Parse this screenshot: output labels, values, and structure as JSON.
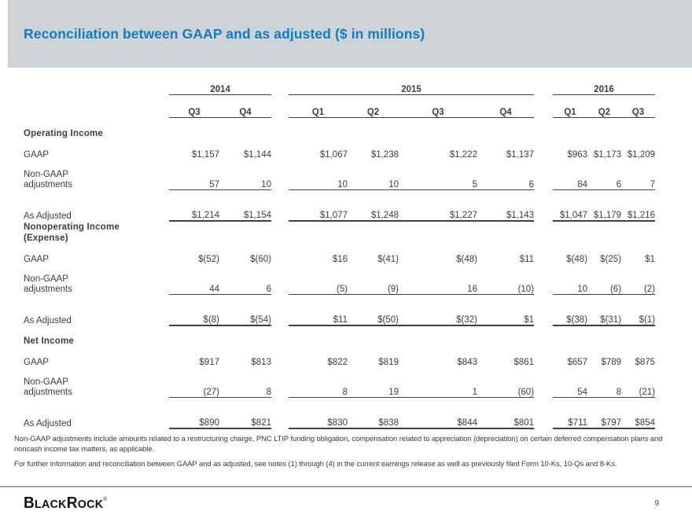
{
  "header": {
    "title": "Reconciliation between GAAP and as adjusted ($ in millions)"
  },
  "table": {
    "year_groups": [
      {
        "year": "2014",
        "quarters": [
          "Q3",
          "Q4"
        ]
      },
      {
        "year": "2015",
        "quarters": [
          "Q1",
          "Q2",
          "Q3",
          "Q4"
        ]
      },
      {
        "year": "2016",
        "quarters": [
          "Q1",
          "Q2",
          "Q3"
        ]
      }
    ],
    "sections": [
      {
        "name_lines": [
          "Operating Income"
        ],
        "rows": [
          {
            "label_lines": [
              "GAAP"
            ],
            "values": [
              "$1,157",
              "$1,144",
              "$1,067",
              "$1,238",
              "$1,222",
              "$1,137",
              "$963",
              "$1,173",
              "$1,209"
            ]
          },
          {
            "label_lines": [
              "Non-GAAP",
              "adjustments"
            ],
            "values": [
              "57",
              "10",
              "10",
              "10",
              "5",
              "6",
              "84",
              "6",
              "7"
            ]
          },
          {
            "label_lines": [
              "As Adjusted"
            ],
            "values": [
              "$1,214",
              "$1,154",
              "$1,077",
              "$1,248",
              "$1,227",
              "$1,143",
              "$1,047",
              "$1,179",
              "$1,216"
            ]
          }
        ]
      },
      {
        "name_lines": [
          "Nonoperating Income",
          "(Expense)"
        ],
        "rows": [
          {
            "label_lines": [
              "GAAP"
            ],
            "values": [
              "$(52)",
              "$(60)",
              "$16",
              "$(41)",
              "$(48)",
              "$11",
              "$(48)",
              "$(25)",
              "$1"
            ]
          },
          {
            "label_lines": [
              "Non-GAAP",
              "adjustments"
            ],
            "values": [
              "44",
              "6",
              "(5)",
              "(9)",
              "16",
              "(10)",
              "10",
              "(6)",
              "(2)"
            ]
          },
          {
            "label_lines": [
              "As Adjusted"
            ],
            "values": [
              "$(8)",
              "$(54)",
              "$11",
              "$(50)",
              "$(32)",
              "$1",
              "$(38)",
              "$(31)",
              "$(1)"
            ]
          }
        ]
      },
      {
        "name_lines": [
          "Net Income"
        ],
        "rows": [
          {
            "label_lines": [
              "GAAP"
            ],
            "values": [
              "$917",
              "$813",
              "$822",
              "$819",
              "$843",
              "$861",
              "$657",
              "$789",
              "$875"
            ]
          },
          {
            "label_lines": [
              "Non-GAAP",
              "adjustments"
            ],
            "values": [
              "(27)",
              "8",
              "8",
              "19",
              "1",
              "(60)",
              "54",
              "8",
              "(21)"
            ]
          },
          {
            "label_lines": [
              "As Adjusted"
            ],
            "values": [
              "$890",
              "$821",
              "$830",
              "$838",
              "$844",
              "$801",
              "$711",
              "$797",
              "$854"
            ]
          }
        ]
      }
    ]
  },
  "footnotes": [
    "Non-GAAP adjustments include amounts related to a restructuring charge, PNC LTIP funding obligation, compensation related to appreciation (depreciation) on certain deferred compensation plans and noncash income tax matters, as applicable.",
    "For further information and reconciliation between GAAP and as adjusted, see notes (1) through (4) in the current earnings release as well as previously filed Form 10-Ks, 10-Qs and 8-Ks."
  ],
  "footer": {
    "brand": "BlackRock",
    "brand_display": {
      "big1": "B",
      "small1": "LACK",
      "big2": "R",
      "small2": "OCK",
      "reg": "®"
    },
    "page_number": "9"
  },
  "colors": {
    "header_bar": "#CED3D7",
    "title_blue": "#0F7DC2",
    "table_text": "#3D3D3D",
    "rule": "#3F3F3F",
    "divider": "#A3A8AC"
  }
}
